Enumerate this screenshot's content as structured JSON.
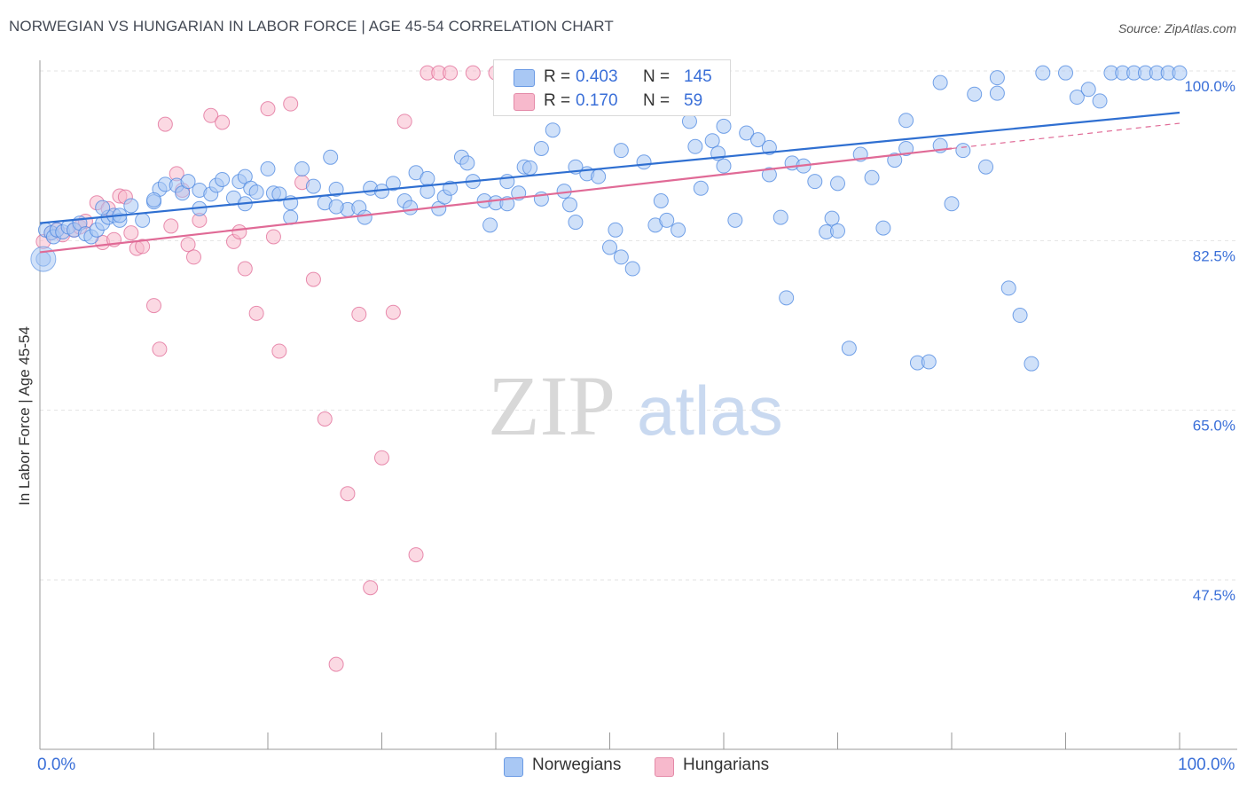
{
  "header": {
    "title": "NORWEGIAN VS HUNGARIAN IN LABOR FORCE | AGE 45-54 CORRELATION CHART",
    "source": "Source: ZipAtlas.com"
  },
  "watermark": {
    "zip": "ZIP",
    "atlas": "atlas"
  },
  "legend_top": {
    "rows": [
      {
        "r_label": "R =",
        "r_value": "0.403",
        "n_label": "N =",
        "n_value": "145",
        "color": "#a9c8f4"
      },
      {
        "r_label": "R =",
        "r_value": "0.170",
        "n_label": "N =",
        "n_value": "59",
        "color": "#f7b9cc"
      }
    ]
  },
  "legend_bottom": {
    "norwegians": {
      "label": "Norwegians",
      "color": "#a9c8f4"
    },
    "hungarians": {
      "label": "Hungarians",
      "color": "#f7b9cc"
    }
  },
  "axes": {
    "ylabel": "In Labor Force | Age 45-54",
    "x_min_label": "0.0%",
    "x_max_label": "100.0%",
    "y_tick_labels": [
      "100.0%",
      "82.5%",
      "65.0%",
      "47.5%"
    ]
  },
  "chart_data": {
    "type": "scatter",
    "title": "NORWEGIAN VS HUNGARIAN IN LABOR FORCE | AGE 45-54 CORRELATION CHART",
    "xlabel": "",
    "ylabel": "In Labor Force | Age 45-54",
    "xlim": [
      0,
      100
    ],
    "ylim": [
      32.5,
      102
    ],
    "y_ticks": [
      100.0,
      82.5,
      65.0,
      47.5
    ],
    "grid": true,
    "legend_placement": "top-center",
    "series": [
      {
        "name": "Norwegians",
        "color": "#4a86e0",
        "fill": "#a9c8f4",
        "r": 0.403,
        "n": 145,
        "trend": {
          "x": [
            0,
            100
          ],
          "y": [
            84.3,
            95.7
          ]
        },
        "points": [
          [
            0.3,
            80.6
          ],
          [
            0.5,
            83.6
          ],
          [
            1,
            83.3
          ],
          [
            1.2,
            82.9
          ],
          [
            1.5,
            83.6
          ],
          [
            2,
            83.4
          ],
          [
            2.5,
            83.9
          ],
          [
            3,
            83.6
          ],
          [
            3.5,
            84.3
          ],
          [
            4,
            83.2
          ],
          [
            4.5,
            82.9
          ],
          [
            5,
            83.6
          ],
          [
            5.5,
            84.3
          ],
          [
            6,
            84.9
          ],
          [
            6.5,
            85.1
          ],
          [
            7,
            84.6
          ],
          [
            8,
            86.1
          ],
          [
            9,
            84.6
          ],
          [
            10,
            86.5
          ],
          [
            10.5,
            87.8
          ],
          [
            11,
            88.3
          ],
          [
            12,
            88.2
          ],
          [
            12.5,
            87.4
          ],
          [
            13,
            88.6
          ],
          [
            14,
            87.7
          ],
          [
            15,
            87.3
          ],
          [
            15.5,
            88.2
          ],
          [
            16,
            88.8
          ],
          [
            17,
            86.9
          ],
          [
            17.5,
            88.6
          ],
          [
            18,
            89.1
          ],
          [
            18.5,
            87.9
          ],
          [
            19,
            87.5
          ],
          [
            20,
            89.9
          ],
          [
            20.5,
            87.4
          ],
          [
            21,
            87.3
          ],
          [
            22,
            84.9
          ],
          [
            23,
            89.9
          ],
          [
            24,
            88.1
          ],
          [
            25,
            86.4
          ],
          [
            25.5,
            91.1
          ],
          [
            26,
            87.8
          ],
          [
            27,
            85.7
          ],
          [
            28,
            85.9
          ],
          [
            28.5,
            84.9
          ],
          [
            29,
            87.9
          ],
          [
            30,
            87.6
          ],
          [
            31,
            88.4
          ],
          [
            32,
            86.6
          ],
          [
            32.5,
            85.9
          ],
          [
            33,
            89.5
          ],
          [
            34,
            87.6
          ],
          [
            35,
            85.8
          ],
          [
            35.5,
            87
          ],
          [
            36,
            87.9
          ],
          [
            37,
            91.1
          ],
          [
            37.5,
            90.5
          ],
          [
            38,
            88.6
          ],
          [
            39,
            86.6
          ],
          [
            39.5,
            84.1
          ],
          [
            40,
            86.4
          ],
          [
            41,
            88.6
          ],
          [
            42,
            87.4
          ],
          [
            42.5,
            90.1
          ],
          [
            43,
            90
          ],
          [
            44,
            92
          ],
          [
            45,
            93.9
          ],
          [
            46,
            87.6
          ],
          [
            46.5,
            86.2
          ],
          [
            47,
            84.4
          ],
          [
            48,
            89.4
          ],
          [
            49,
            89.1
          ],
          [
            50,
            81.8
          ],
          [
            50.5,
            83.6
          ],
          [
            51,
            80.8
          ],
          [
            52,
            79.6
          ],
          [
            53,
            90.6
          ],
          [
            54,
            84.1
          ],
          [
            54.5,
            86.6
          ],
          [
            55,
            84.6
          ],
          [
            56,
            83.6
          ],
          [
            57,
            94.8
          ],
          [
            57.5,
            92.2
          ],
          [
            58,
            87.9
          ],
          [
            59,
            92.8
          ],
          [
            59.5,
            91.5
          ],
          [
            60,
            94.3
          ],
          [
            61,
            84.6
          ],
          [
            62,
            93.6
          ],
          [
            63,
            92.9
          ],
          [
            64,
            92.1
          ],
          [
            65,
            84.9
          ],
          [
            65.5,
            76.6
          ],
          [
            66,
            90.5
          ],
          [
            67,
            90.2
          ],
          [
            68,
            88.6
          ],
          [
            69,
            83.4
          ],
          [
            69.5,
            84.8
          ],
          [
            70,
            83.5
          ],
          [
            71,
            71.4
          ],
          [
            72,
            91.4
          ],
          [
            73,
            89
          ],
          [
            74,
            83.8
          ],
          [
            75,
            90.8
          ],
          [
            76,
            94.9
          ],
          [
            77,
            69.9
          ],
          [
            78,
            70.0
          ],
          [
            79,
            92.3
          ],
          [
            80,
            86.3
          ],
          [
            81,
            91.8
          ],
          [
            82,
            97.6
          ],
          [
            83,
            90.1
          ],
          [
            84,
            97.7
          ],
          [
            85,
            77.6
          ],
          [
            86,
            74.8
          ],
          [
            87,
            69.8
          ],
          [
            91,
            97.3
          ],
          [
            92,
            98.1
          ],
          [
            93,
            96.9
          ],
          [
            94,
            99.8
          ],
          [
            95,
            99.8
          ],
          [
            96,
            99.8
          ],
          [
            97,
            99.8
          ],
          [
            98,
            99.8
          ],
          [
            99,
            99.8
          ],
          [
            100,
            99.8
          ],
          [
            5.5,
            85.9
          ],
          [
            7,
            85.1
          ],
          [
            10,
            86.7
          ],
          [
            14,
            85.8
          ],
          [
            18,
            86.3
          ],
          [
            22,
            86.4
          ],
          [
            26,
            86
          ],
          [
            34,
            88.9
          ],
          [
            41,
            86.3
          ],
          [
            44,
            86.8
          ],
          [
            47,
            90.1
          ],
          [
            51,
            91.8
          ],
          [
            60,
            90.2
          ],
          [
            64,
            89.3
          ],
          [
            70,
            88.4
          ],
          [
            76,
            92
          ],
          [
            79,
            98.8
          ],
          [
            84,
            99.3
          ],
          [
            88,
            99.8
          ],
          [
            90,
            99.8
          ]
        ]
      },
      {
        "name": "Hungarians",
        "color": "#e06a96",
        "fill": "#f7b9cc",
        "r": 0.17,
        "n": 59,
        "trend": {
          "x": [
            0,
            80
          ],
          "y": [
            81.3,
            92.0
          ]
        },
        "trend_dashed": {
          "x": [
            80,
            100
          ],
          "y": [
            92.0,
            94.6
          ]
        },
        "points": [
          [
            0.3,
            82.4
          ],
          [
            1,
            83.3
          ],
          [
            1.5,
            83.6
          ],
          [
            2,
            83.1
          ],
          [
            3,
            83.6
          ],
          [
            3.5,
            83.9
          ],
          [
            4,
            84.5
          ],
          [
            5,
            86.4
          ],
          [
            5.5,
            82.3
          ],
          [
            6,
            85.8
          ],
          [
            6.5,
            82.6
          ],
          [
            7,
            87.1
          ],
          [
            7.5,
            87
          ],
          [
            8,
            83.3
          ],
          [
            8.5,
            81.7
          ],
          [
            9,
            81.9
          ],
          [
            10,
            75.8
          ],
          [
            10.5,
            71.3
          ],
          [
            11,
            94.5
          ],
          [
            11.5,
            84
          ],
          [
            12,
            89.4
          ],
          [
            12.5,
            87.7
          ],
          [
            13,
            82.1
          ],
          [
            13.5,
            80.8
          ],
          [
            14,
            84.6
          ],
          [
            15,
            95.4
          ],
          [
            16,
            94.7
          ],
          [
            17,
            82.4
          ],
          [
            17.5,
            83.4
          ],
          [
            18,
            79.6
          ],
          [
            19,
            75
          ],
          [
            20,
            96.1
          ],
          [
            20.5,
            82.9
          ],
          [
            21,
            71.1
          ],
          [
            22,
            96.6
          ],
          [
            23,
            88.5
          ],
          [
            24,
            78.5
          ],
          [
            25,
            64.1
          ],
          [
            26,
            38.8
          ],
          [
            27,
            56.4
          ],
          [
            28,
            74.9
          ],
          [
            29,
            46.7
          ],
          [
            30,
            60.1
          ],
          [
            31,
            75.1
          ],
          [
            32,
            94.8
          ],
          [
            33,
            50.1
          ],
          [
            34,
            99.8
          ],
          [
            35,
            99.8
          ],
          [
            36,
            99.8
          ],
          [
            38,
            99.8
          ],
          [
            40,
            99.8
          ],
          [
            42,
            99.8
          ],
          [
            44,
            99.8
          ],
          [
            46,
            99.8
          ],
          [
            48,
            99.8
          ],
          [
            50,
            99.8
          ],
          [
            52,
            99.8
          ],
          [
            54,
            99.8
          ],
          [
            56,
            99.8
          ]
        ]
      }
    ]
  }
}
